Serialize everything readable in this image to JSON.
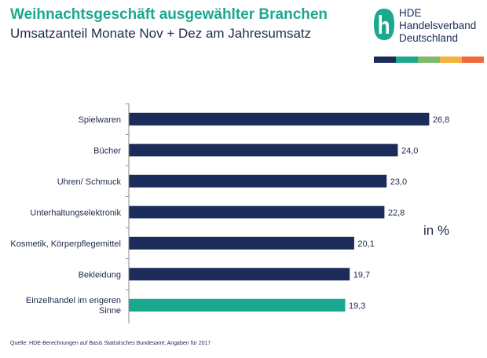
{
  "header": {
    "title": "Weihnachtsgeschäft ausgewählter Branchen",
    "subtitle": "Umsatzanteil Monate Nov + Dez am Jahresumsatz"
  },
  "logo": {
    "line1": "HDE",
    "line2": "Handelsverband",
    "line3": "Deutschland",
    "icon": "hde-h-icon",
    "stripe_colors": [
      "#1b2b5a",
      "#1aa88f",
      "#7dbb6e",
      "#f6b13c",
      "#ef6a3c"
    ]
  },
  "unit_label": "in %",
  "source": "Quelle:  HDE-Berechnungen  auf Basis Statistisches Bundesamt;  Angaben  für 2017",
  "colors": {
    "bar": "#1b2b5a",
    "highlight": "#1aa88f",
    "axis": "#8a8a8a"
  },
  "chart_data": {
    "type": "bar",
    "orientation": "horizontal",
    "categories": [
      "Spielwaren",
      "Bücher",
      "Uhren/ Schmuck",
      "Unterhaltungselektronik",
      "Kosmetik, Körperpflegemittel",
      "Bekleidung",
      "Einzelhandel im engeren Sinne"
    ],
    "values": [
      26.8,
      24.0,
      23.0,
      22.8,
      20.1,
      19.7,
      19.3
    ],
    "data_labels": [
      "26,8",
      "24,0",
      "23,0",
      "22,8",
      "20,1",
      "19,7",
      "19,3"
    ],
    "highlight_index": 6,
    "xlim": [
      0,
      30
    ],
    "grid": false,
    "legend": "none"
  }
}
